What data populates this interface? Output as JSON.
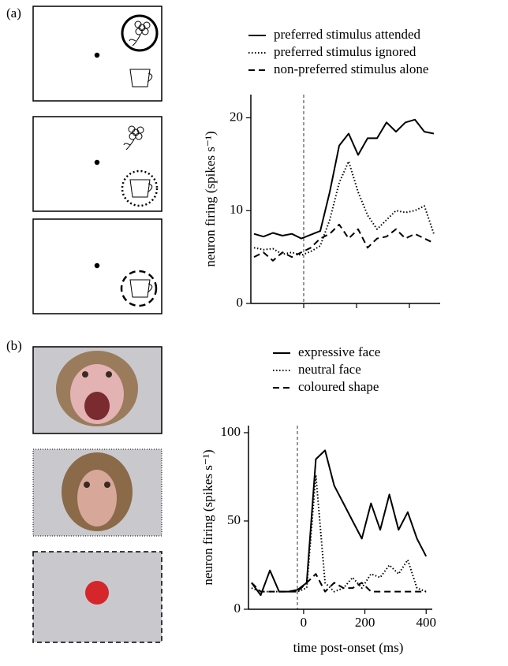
{
  "chart_data": [
    {
      "type": "line",
      "panel": "(a)",
      "y_label": "neuron firing (spikes s⁻¹)",
      "categories": [
        null,
        null,
        null,
        null,
        null,
        null,
        null,
        null,
        null,
        null,
        null,
        null,
        null,
        null,
        null,
        null,
        null,
        null,
        null,
        null
      ],
      "ylim": [
        0,
        22.5
      ],
      "yticks": [
        0,
        10,
        20
      ],
      "series": [
        {
          "name": "preferred stimulus attended",
          "color": "#000000",
          "dash": "solid",
          "values": [
            7.5,
            7.2,
            7.6,
            7.3,
            7.5,
            7,
            7.4,
            7.8,
            12,
            17,
            18.3,
            16,
            17.8,
            17.8,
            19.5,
            18.5,
            19.5,
            19.8,
            18.5,
            18.3
          ]
        },
        {
          "name": "preferred stimulus ignored",
          "color": "#000000",
          "dash": "dotted",
          "values": [
            6,
            5.8,
            5.9,
            5.3,
            5.5,
            5.2,
            5.6,
            6.2,
            9,
            13,
            15.3,
            12,
            9.5,
            8,
            9,
            10,
            9.8,
            10,
            10.5,
            7.5
          ]
        },
        {
          "name": "non-preferred stimulus alone",
          "color": "#000000",
          "dash": "dashed",
          "values": [
            5,
            5.5,
            4.6,
            5.5,
            5,
            5.5,
            6,
            7,
            7.5,
            8.5,
            7,
            8,
            6,
            7,
            7.2,
            8,
            7,
            7.5,
            7,
            6.5
          ]
        }
      ]
    },
    {
      "type": "line",
      "panel": "(b)",
      "y_label": "neuron firing (spikes s⁻¹)",
      "x_label": "time post-onset (ms)",
      "x": [
        -170,
        -140,
        -110,
        -80,
        -50,
        -20,
        10,
        40,
        70,
        100,
        130,
        160,
        190,
        220,
        250,
        280,
        310,
        340,
        370,
        400
      ],
      "xlim": [
        -180,
        420
      ],
      "xticks": [
        0,
        200,
        400
      ],
      "ylim": [
        0,
        104
      ],
      "yticks": [
        0,
        50,
        100
      ],
      "series": [
        {
          "name": "expressive face",
          "color": "#000000",
          "dash": "solid",
          "values": [
            15,
            8,
            22,
            10,
            10,
            11,
            15,
            85,
            90,
            70,
            60,
            50,
            40,
            60,
            45,
            65,
            45,
            55,
            40,
            30
          ]
        },
        {
          "name": "neutral face",
          "color": "#000000",
          "dash": "dotted",
          "values": [
            12,
            10,
            10,
            10,
            10,
            10,
            12,
            76,
            15,
            10,
            12,
            18,
            12,
            20,
            18,
            25,
            20,
            28,
            12,
            10
          ]
        },
        {
          "name": "coloured shape",
          "color": "#000000",
          "dash": "dashed",
          "values": [
            15,
            10,
            10,
            10,
            10,
            10,
            15,
            20,
            10,
            15,
            12,
            12,
            15,
            10,
            10,
            10,
            10,
            10,
            10,
            10
          ]
        }
      ]
    }
  ]
}
